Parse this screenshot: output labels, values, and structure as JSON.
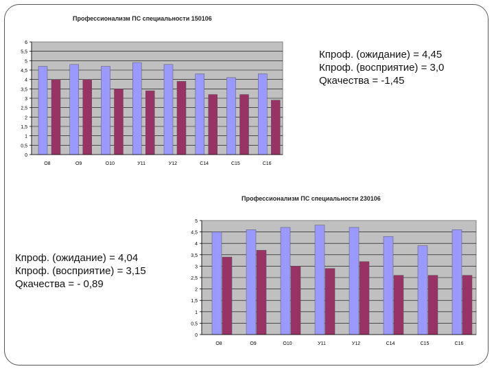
{
  "chart_data": [
    {
      "type": "bar",
      "title": "Профессионализм ПС специальности 150106",
      "categories": [
        "О8",
        "О9",
        "О10",
        "У11",
        "У12",
        "С14",
        "С15",
        "С16"
      ],
      "series": [
        {
          "values": [
            4.7,
            4.8,
            4.7,
            4.9,
            4.8,
            4.3,
            4.1,
            4.3
          ],
          "color": "#9999ff"
        },
        {
          "values": [
            4.0,
            4.0,
            3.5,
            3.4,
            3.9,
            3.2,
            3.2,
            2.9
          ],
          "color": "#993366"
        }
      ],
      "ylim": [
        0,
        6
      ],
      "yticks": [
        "0",
        "0,5",
        "1",
        "1,5",
        "2",
        "2,5",
        "3",
        "3,5",
        "4",
        "4,5",
        "5",
        "5,5",
        "6"
      ],
      "grid": true,
      "legend": "none",
      "plot_background": "#c0c0c0"
    },
    {
      "type": "bar",
      "title": "Профессионализм ПС специальности 230106",
      "categories": [
        "О8",
        "О9",
        "О10",
        "У11",
        "У12",
        "С14",
        "С15",
        "С16"
      ],
      "series": [
        {
          "values": [
            4.5,
            4.6,
            4.7,
            4.8,
            4.7,
            4.3,
            3.9,
            4.6
          ],
          "color": "#9999ff"
        },
        {
          "values": [
            3.4,
            3.7,
            3.0,
            2.9,
            3.2,
            2.6,
            2.6,
            2.6
          ],
          "color": "#993366"
        }
      ],
      "ylim": [
        0,
        5
      ],
      "yticks": [
        "0",
        "0,5",
        "1",
        "1,5",
        "2",
        "2,5",
        "3",
        "3,5",
        "4",
        "4,5",
        "5"
      ],
      "grid": true,
      "legend": "none",
      "plot_background": "#c0c0c0"
    }
  ],
  "stats_top": {
    "line1": "Кпроф. (ожидание) = 4,45",
    "line2": "Кпроф. (восприятие) = 3,0",
    "line3": "Qкачества = -1,45"
  },
  "stats_bottom": {
    "line1": "Кпроф. (ожидание) = 4,04",
    "line2": "Кпроф. (восприятие) = 3,15",
    "line3": "Qкачества = - 0,89"
  }
}
